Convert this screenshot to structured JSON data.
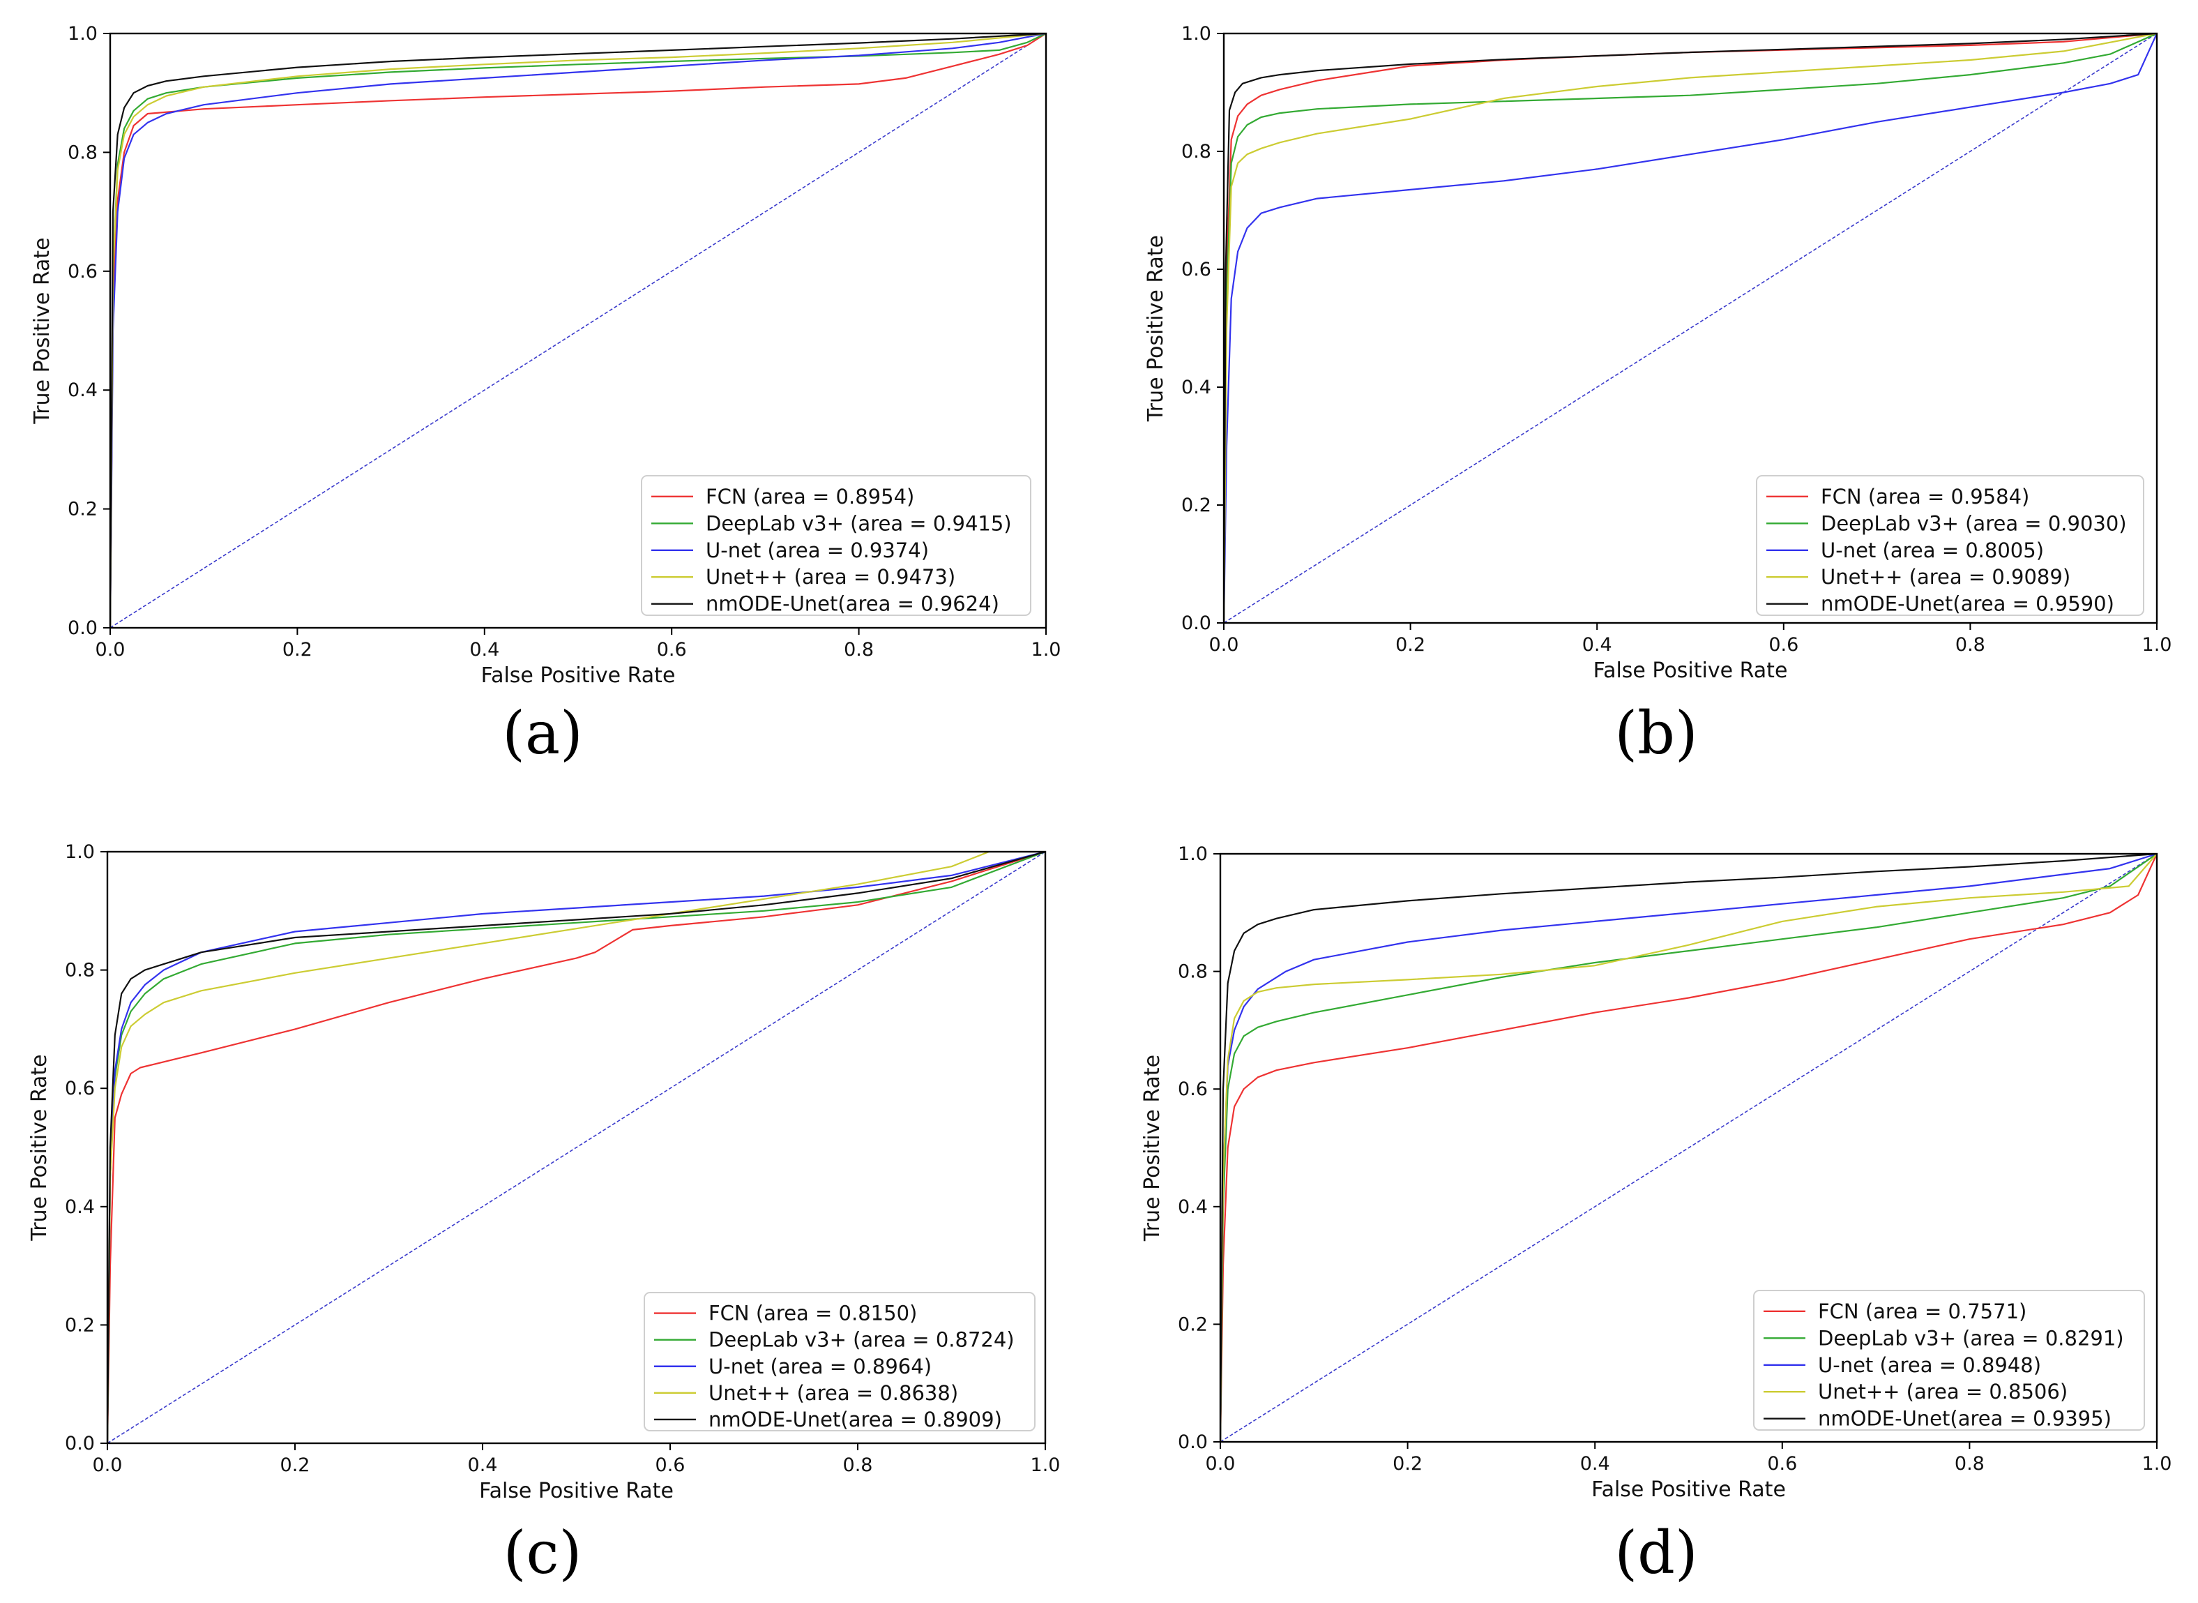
{
  "figure": {
    "panel_labels": [
      "(a)",
      "(b)",
      "(c)",
      "(d)"
    ]
  },
  "chart_data": [
    {
      "type": "line",
      "panel": "(a)",
      "title": "",
      "xlabel": "False Positive Rate",
      "ylabel": "True Positive Rate",
      "xlim": [
        0,
        1
      ],
      "ylim": [
        0,
        1
      ],
      "xticks": [
        "0.0",
        "0.2",
        "0.4",
        "0.6",
        "0.8",
        "1.0"
      ],
      "yticks": [
        "0.0",
        "0.2",
        "0.4",
        "0.6",
        "0.8",
        "1.0"
      ],
      "grid": false,
      "legend_position": "bottom-right",
      "diagonal": {
        "color": "#3b3bcc",
        "style": "dashed",
        "x": [
          0,
          1
        ],
        "y": [
          0,
          1
        ]
      },
      "series": [
        {
          "name": "FCN",
          "label": "FCN (area = 0.8954)",
          "color": "#ee3333",
          "x": [
            0,
            0.003,
            0.008,
            0.015,
            0.025,
            0.04,
            0.1,
            0.2,
            0.3,
            0.4,
            0.5,
            0.6,
            0.7,
            0.8,
            0.85,
            0.9,
            0.95,
            0.98,
            1.0
          ],
          "y": [
            0,
            0.55,
            0.72,
            0.8,
            0.845,
            0.865,
            0.873,
            0.88,
            0.887,
            0.893,
            0.898,
            0.903,
            0.91,
            0.915,
            0.925,
            0.945,
            0.965,
            0.98,
            1.0
          ]
        },
        {
          "name": "DeepLab v3+",
          "label": "DeepLab v3+ (area = 0.9415)",
          "color": "#33aa33",
          "x": [
            0,
            0.003,
            0.008,
            0.015,
            0.025,
            0.04,
            0.06,
            0.1,
            0.2,
            0.3,
            0.4,
            0.5,
            0.6,
            0.7,
            0.8,
            0.9,
            0.95,
            0.98,
            1.0
          ],
          "y": [
            0,
            0.6,
            0.78,
            0.84,
            0.87,
            0.89,
            0.9,
            0.91,
            0.925,
            0.935,
            0.942,
            0.948,
            0.953,
            0.958,
            0.962,
            0.968,
            0.972,
            0.985,
            1.0
          ]
        },
        {
          "name": "U-net",
          "label": "U-net (area = 0.9374)",
          "color": "#3333ee",
          "x": [
            0,
            0.003,
            0.008,
            0.015,
            0.025,
            0.04,
            0.06,
            0.1,
            0.2,
            0.3,
            0.4,
            0.5,
            0.6,
            0.7,
            0.8,
            0.9,
            0.95,
            1.0
          ],
          "y": [
            0,
            0.5,
            0.7,
            0.79,
            0.83,
            0.85,
            0.865,
            0.88,
            0.9,
            0.915,
            0.925,
            0.935,
            0.945,
            0.955,
            0.963,
            0.975,
            0.985,
            1.0
          ]
        },
        {
          "name": "Unet++",
          "label": "Unet++ (area = 0.9473)",
          "color": "#cccc33",
          "x": [
            0,
            0.003,
            0.008,
            0.015,
            0.025,
            0.04,
            0.06,
            0.1,
            0.2,
            0.3,
            0.4,
            0.5,
            0.6,
            0.7,
            0.8,
            0.9,
            1.0
          ],
          "y": [
            0,
            0.6,
            0.77,
            0.83,
            0.86,
            0.88,
            0.895,
            0.91,
            0.928,
            0.94,
            0.948,
            0.955,
            0.96,
            0.967,
            0.975,
            0.985,
            1.0
          ]
        },
        {
          "name": "nmODE-Unet",
          "label": "nmODE-Unet(area = 0.9624)",
          "color": "#111111",
          "x": [
            0,
            0.003,
            0.008,
            0.015,
            0.025,
            0.04,
            0.06,
            0.1,
            0.2,
            0.3,
            0.4,
            0.5,
            0.6,
            0.7,
            0.8,
            0.9,
            1.0
          ],
          "y": [
            0,
            0.7,
            0.83,
            0.875,
            0.9,
            0.912,
            0.92,
            0.928,
            0.943,
            0.953,
            0.96,
            0.966,
            0.972,
            0.978,
            0.984,
            0.991,
            1.0
          ]
        }
      ]
    },
    {
      "type": "line",
      "panel": "(b)",
      "title": "",
      "xlabel": "False Positive Rate",
      "ylabel": "True Positive Rate",
      "xlim": [
        0,
        1
      ],
      "ylim": [
        0,
        1
      ],
      "xticks": [
        "0.0",
        "0.2",
        "0.4",
        "0.6",
        "0.8",
        "1.0"
      ],
      "yticks": [
        "0.0",
        "0.2",
        "0.4",
        "0.6",
        "0.8",
        "1.0"
      ],
      "grid": false,
      "legend_position": "bottom-right",
      "diagonal": {
        "color": "#3b3bcc",
        "style": "dashed",
        "x": [
          0,
          1
        ],
        "y": [
          0,
          1
        ]
      },
      "series": [
        {
          "name": "FCN",
          "label": "FCN (area = 0.9584)",
          "color": "#ee3333",
          "x": [
            0,
            0.003,
            0.008,
            0.015,
            0.025,
            0.04,
            0.06,
            0.1,
            0.2,
            0.3,
            0.4,
            0.5,
            0.6,
            0.7,
            0.8,
            0.9,
            1.0
          ],
          "y": [
            0,
            0.6,
            0.82,
            0.86,
            0.88,
            0.895,
            0.905,
            0.92,
            0.945,
            0.955,
            0.962,
            0.968,
            0.972,
            0.976,
            0.98,
            0.986,
            1.0
          ]
        },
        {
          "name": "DeepLab v3+",
          "label": "DeepLab v3+ (area = 0.9030)",
          "color": "#33aa33",
          "x": [
            0,
            0.003,
            0.008,
            0.015,
            0.025,
            0.04,
            0.06,
            0.1,
            0.2,
            0.3,
            0.4,
            0.5,
            0.6,
            0.7,
            0.8,
            0.9,
            0.95,
            1.0
          ],
          "y": [
            0,
            0.55,
            0.78,
            0.825,
            0.845,
            0.858,
            0.865,
            0.872,
            0.88,
            0.885,
            0.89,
            0.895,
            0.905,
            0.915,
            0.93,
            0.95,
            0.965,
            1.0
          ]
        },
        {
          "name": "U-net",
          "label": "U-net (area = 0.8005)",
          "color": "#3333ee",
          "x": [
            0,
            0.003,
            0.008,
            0.015,
            0.025,
            0.04,
            0.06,
            0.1,
            0.2,
            0.3,
            0.4,
            0.5,
            0.6,
            0.7,
            0.8,
            0.9,
            0.95,
            0.98,
            1.0
          ],
          "y": [
            0,
            0.3,
            0.55,
            0.63,
            0.67,
            0.695,
            0.705,
            0.72,
            0.735,
            0.75,
            0.77,
            0.795,
            0.82,
            0.85,
            0.875,
            0.9,
            0.915,
            0.93,
            1.0
          ]
        },
        {
          "name": "Unet++",
          "label": "Unet++ (area = 0.9089)",
          "color": "#cccc33",
          "x": [
            0,
            0.003,
            0.008,
            0.015,
            0.025,
            0.04,
            0.06,
            0.1,
            0.2,
            0.3,
            0.4,
            0.5,
            0.6,
            0.7,
            0.8,
            0.9,
            1.0
          ],
          "y": [
            0,
            0.5,
            0.74,
            0.78,
            0.795,
            0.805,
            0.815,
            0.83,
            0.855,
            0.89,
            0.91,
            0.925,
            0.935,
            0.945,
            0.955,
            0.97,
            1.0
          ]
        },
        {
          "name": "nmODE-Unet",
          "label": "nmODE-Unet(area = 0.9590)",
          "color": "#111111",
          "x": [
            0,
            0.002,
            0.006,
            0.012,
            0.02,
            0.04,
            0.06,
            0.1,
            0.2,
            0.3,
            0.4,
            0.5,
            0.6,
            0.7,
            0.8,
            0.9,
            1.0
          ],
          "y": [
            0,
            0.6,
            0.87,
            0.9,
            0.915,
            0.925,
            0.93,
            0.937,
            0.948,
            0.956,
            0.962,
            0.968,
            0.973,
            0.978,
            0.983,
            0.99,
            1.0
          ]
        }
      ]
    },
    {
      "type": "line",
      "panel": "(c)",
      "title": "",
      "xlabel": "False Positive Rate",
      "ylabel": "True Positive Rate",
      "xlim": [
        0,
        1
      ],
      "ylim": [
        0,
        1
      ],
      "xticks": [
        "0.0",
        "0.2",
        "0.4",
        "0.6",
        "0.8",
        "1.0"
      ],
      "yticks": [
        "0.0",
        "0.2",
        "0.4",
        "0.6",
        "0.8",
        "1.0"
      ],
      "grid": false,
      "legend_position": "bottom-right",
      "diagonal": {
        "color": "#3b3bcc",
        "style": "dashed",
        "x": [
          0,
          1
        ],
        "y": [
          0,
          1
        ]
      },
      "series": [
        {
          "name": "FCN",
          "label": "FCN (area = 0.8150)",
          "color": "#ee3333",
          "x": [
            0,
            0.003,
            0.008,
            0.015,
            0.025,
            0.035,
            0.1,
            0.2,
            0.3,
            0.4,
            0.5,
            0.52,
            0.56,
            0.6,
            0.7,
            0.8,
            0.9,
            1.0
          ],
          "y": [
            0,
            0.3,
            0.55,
            0.59,
            0.625,
            0.635,
            0.66,
            0.7,
            0.745,
            0.785,
            0.82,
            0.83,
            0.868,
            0.875,
            0.89,
            0.91,
            0.95,
            1.0
          ]
        },
        {
          "name": "DeepLab v3+",
          "label": "DeepLab v3+ (area = 0.8724)",
          "color": "#33aa33",
          "x": [
            0,
            0.003,
            0.008,
            0.015,
            0.025,
            0.04,
            0.06,
            0.1,
            0.2,
            0.3,
            0.4,
            0.5,
            0.6,
            0.7,
            0.8,
            0.9,
            1.0
          ],
          "y": [
            0,
            0.45,
            0.62,
            0.69,
            0.73,
            0.76,
            0.785,
            0.81,
            0.845,
            0.86,
            0.87,
            0.88,
            0.89,
            0.9,
            0.915,
            0.94,
            1.0
          ]
        },
        {
          "name": "U-net",
          "label": "U-net (area = 0.8964)",
          "color": "#3333ee",
          "x": [
            0,
            0.003,
            0.008,
            0.015,
            0.025,
            0.04,
            0.06,
            0.1,
            0.2,
            0.3,
            0.4,
            0.5,
            0.6,
            0.7,
            0.8,
            0.9,
            1.0
          ],
          "y": [
            0,
            0.45,
            0.63,
            0.7,
            0.745,
            0.775,
            0.8,
            0.83,
            0.865,
            0.88,
            0.895,
            0.905,
            0.915,
            0.925,
            0.94,
            0.96,
            1.0
          ]
        },
        {
          "name": "Unet++",
          "label": "Unet++ (area = 0.8638)",
          "color": "#cccc33",
          "x": [
            0,
            0.003,
            0.008,
            0.015,
            0.025,
            0.04,
            0.06,
            0.1,
            0.2,
            0.3,
            0.4,
            0.5,
            0.6,
            0.7,
            0.8,
            0.9,
            0.94
          ],
          "y": [
            0,
            0.45,
            0.6,
            0.67,
            0.705,
            0.725,
            0.745,
            0.765,
            0.795,
            0.82,
            0.845,
            0.87,
            0.895,
            0.92,
            0.945,
            0.975,
            1.0
          ]
        },
        {
          "name": "nmODE-Unet",
          "label": "nmODE-Unet(area = 0.8909)",
          "color": "#111111",
          "x": [
            0,
            0.003,
            0.008,
            0.015,
            0.025,
            0.04,
            0.06,
            0.1,
            0.2,
            0.3,
            0.4,
            0.5,
            0.6,
            0.7,
            0.8,
            0.9,
            1.0
          ],
          "y": [
            0,
            0.5,
            0.69,
            0.76,
            0.785,
            0.8,
            0.81,
            0.83,
            0.855,
            0.865,
            0.875,
            0.885,
            0.895,
            0.91,
            0.93,
            0.955,
            1.0
          ]
        }
      ]
    },
    {
      "type": "line",
      "panel": "(d)",
      "title": "",
      "xlabel": "False Positive Rate",
      "ylabel": "True Positive Rate",
      "xlim": [
        0,
        1
      ],
      "ylim": [
        0,
        1
      ],
      "xticks": [
        "0.0",
        "0.2",
        "0.4",
        "0.6",
        "0.8",
        "1.0"
      ],
      "yticks": [
        "0.0",
        "0.2",
        "0.4",
        "0.6",
        "0.8",
        "1.0"
      ],
      "grid": false,
      "legend_position": "bottom-right",
      "diagonal": {
        "color": "#3b3bcc",
        "style": "dashed",
        "x": [
          0,
          1
        ],
        "y": [
          0,
          1
        ]
      },
      "series": [
        {
          "name": "FCN",
          "label": "FCN (area = 0.7571)",
          "color": "#ee3333",
          "x": [
            0,
            0.003,
            0.008,
            0.015,
            0.025,
            0.04,
            0.06,
            0.1,
            0.2,
            0.3,
            0.4,
            0.5,
            0.6,
            0.7,
            0.8,
            0.9,
            0.95,
            0.98,
            1.0
          ],
          "y": [
            0,
            0.3,
            0.5,
            0.57,
            0.6,
            0.62,
            0.632,
            0.645,
            0.67,
            0.7,
            0.73,
            0.755,
            0.785,
            0.82,
            0.855,
            0.88,
            0.9,
            0.93,
            1.0
          ]
        },
        {
          "name": "DeepLab v3+",
          "label": "DeepLab v3+ (area = 0.8291)",
          "color": "#33aa33",
          "x": [
            0,
            0.003,
            0.008,
            0.015,
            0.025,
            0.04,
            0.06,
            0.1,
            0.2,
            0.3,
            0.4,
            0.5,
            0.6,
            0.7,
            0.8,
            0.9,
            0.95,
            1.0
          ],
          "y": [
            0,
            0.4,
            0.6,
            0.66,
            0.69,
            0.705,
            0.715,
            0.73,
            0.76,
            0.79,
            0.815,
            0.835,
            0.855,
            0.875,
            0.9,
            0.925,
            0.945,
            1.0
          ]
        },
        {
          "name": "U-net",
          "label": "U-net (area = 0.8948)",
          "color": "#3333ee",
          "x": [
            0,
            0.003,
            0.008,
            0.015,
            0.025,
            0.04,
            0.07,
            0.1,
            0.2,
            0.3,
            0.4,
            0.5,
            0.6,
            0.7,
            0.8,
            0.9,
            0.95,
            1.0
          ],
          "y": [
            0,
            0.45,
            0.64,
            0.7,
            0.74,
            0.77,
            0.8,
            0.82,
            0.85,
            0.87,
            0.885,
            0.9,
            0.915,
            0.93,
            0.945,
            0.965,
            0.975,
            1.0
          ]
        },
        {
          "name": "Unet++",
          "label": "Unet++ (area = 0.8506)",
          "color": "#cccc33",
          "x": [
            0,
            0.003,
            0.008,
            0.015,
            0.025,
            0.04,
            0.06,
            0.1,
            0.2,
            0.3,
            0.4,
            0.5,
            0.6,
            0.7,
            0.8,
            0.9,
            0.97,
            1.0
          ],
          "y": [
            0,
            0.45,
            0.65,
            0.72,
            0.75,
            0.765,
            0.772,
            0.778,
            0.786,
            0.795,
            0.81,
            0.845,
            0.885,
            0.91,
            0.925,
            0.935,
            0.945,
            1.0
          ]
        },
        {
          "name": "nmODE-Unet",
          "label": "nmODE-Unet(area = 0.9395)",
          "color": "#111111",
          "x": [
            0,
            0.003,
            0.008,
            0.015,
            0.025,
            0.04,
            0.06,
            0.1,
            0.2,
            0.3,
            0.4,
            0.5,
            0.6,
            0.7,
            0.8,
            0.9,
            1.0
          ],
          "y": [
            0,
            0.6,
            0.78,
            0.835,
            0.865,
            0.88,
            0.89,
            0.905,
            0.92,
            0.932,
            0.942,
            0.952,
            0.96,
            0.97,
            0.978,
            0.988,
            1.0
          ]
        }
      ]
    }
  ]
}
